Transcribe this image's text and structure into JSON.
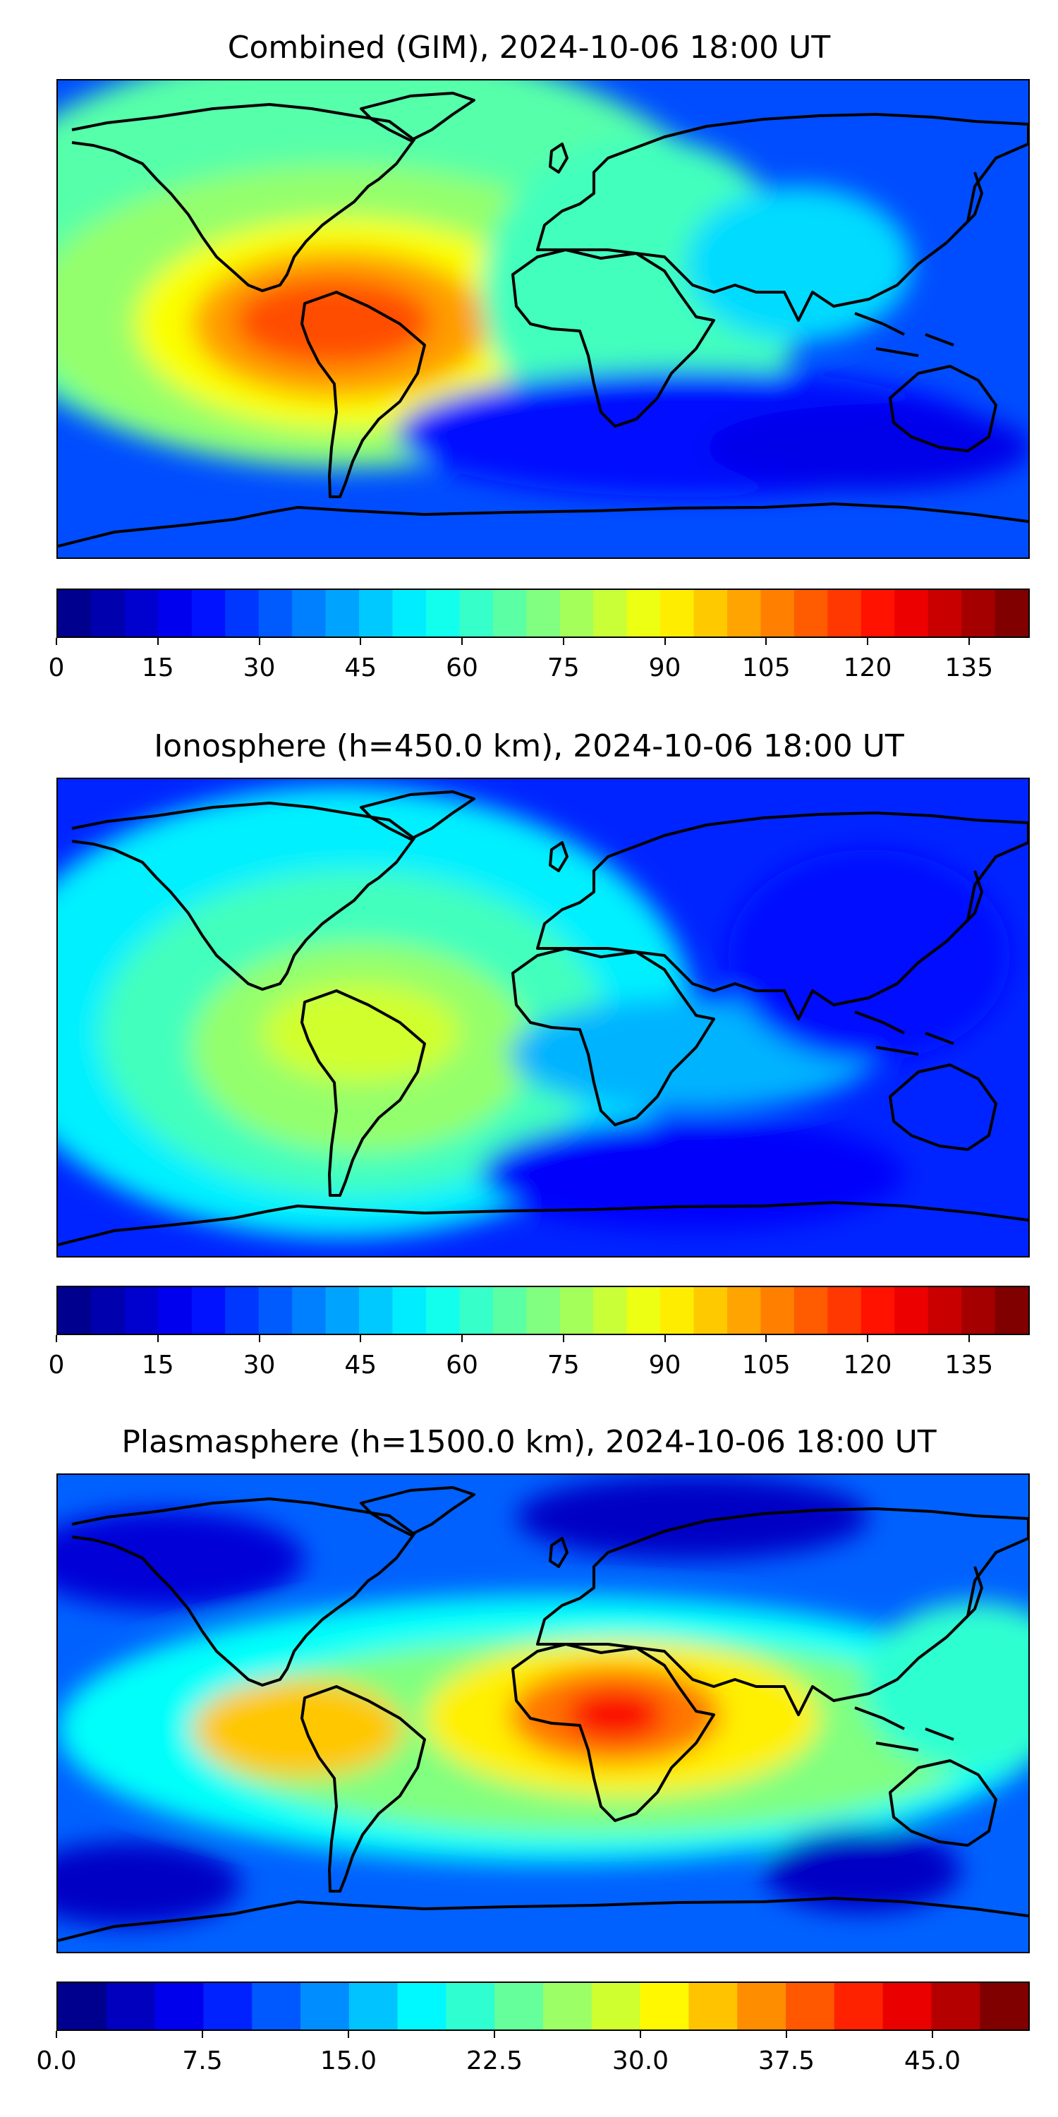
{
  "panels": [
    {
      "title": "Combined (GIM), 2024-10-06 18:00 UT",
      "colorbar": {
        "min": 0,
        "max": 144,
        "ticks": [
          "0",
          "15",
          "30",
          "45",
          "60",
          "75",
          "90",
          "105",
          "120",
          "135"
        ],
        "tick_values": [
          0,
          15,
          30,
          45,
          60,
          75,
          90,
          105,
          120,
          135
        ]
      },
      "field_summary": {
        "background": 30,
        "peak": 120,
        "peak_region": "northern South America"
      }
    },
    {
      "title": "Ionosphere  (h=450.0 km), 2024-10-06 18:00 UT",
      "colorbar": {
        "min": 0,
        "max": 144,
        "ticks": [
          "0",
          "15",
          "30",
          "45",
          "60",
          "75",
          "90",
          "105",
          "120",
          "135"
        ],
        "tick_values": [
          0,
          15,
          30,
          45,
          60,
          75,
          90,
          105,
          120,
          135
        ]
      },
      "field_summary": {
        "background": 22,
        "peak": 85,
        "peak_region": "South America"
      }
    },
    {
      "title": "Plasmasphere (h=1500.0 km), 2024-10-06 18:00 UT",
      "colorbar": {
        "min": 0,
        "max": 50,
        "ticks": [
          "0.0",
          "7.5",
          "15.0",
          "22.5",
          "30.0",
          "37.5",
          "45.0"
        ],
        "tick_values": [
          0,
          7.5,
          15,
          22.5,
          30,
          37.5,
          45
        ]
      },
      "field_summary": {
        "background": 10,
        "peak": 44,
        "peak_region": "central Africa"
      }
    }
  ],
  "colormap": [
    "#00008f",
    "#0000ff",
    "#0080ff",
    "#00ffff",
    "#80ff80",
    "#ffff00",
    "#ff8000",
    "#ff0000",
    "#800000"
  ]
}
